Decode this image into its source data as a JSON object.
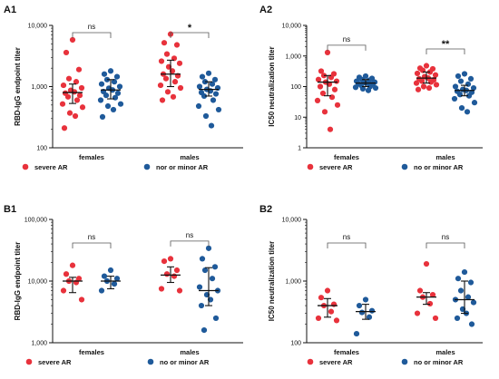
{
  "colors": {
    "severe": "#e8323c",
    "minor": "#1f5a9a",
    "axis": "#111111"
  },
  "chart_data": [
    {
      "panel": "A1",
      "type": "scatter",
      "ylabel": "RBD-IgG endpoint titer",
      "yscale": "log",
      "ylim": [
        100,
        10000
      ],
      "yticks": [
        100,
        1000,
        10000
      ],
      "ytick_labels": [
        "100",
        "1,000",
        "10,000"
      ],
      "categories": [
        "females",
        "males"
      ],
      "legend": [
        "severe AR",
        "nor or minor AR"
      ],
      "comparisons": [
        {
          "category": "females",
          "label": "ns"
        },
        {
          "category": "males",
          "label": "*"
        }
      ],
      "groups": [
        {
          "category": "females",
          "series": "severe AR",
          "median": 800,
          "q1": 530,
          "q3": 1100,
          "values": [
            5800,
            3600,
            1900,
            1350,
            1200,
            1050,
            950,
            870,
            820,
            780,
            720,
            680,
            600,
            520,
            460,
            370,
            330,
            210
          ]
        },
        {
          "category": "females",
          "series": "nor or minor AR",
          "median": 880,
          "q1": 630,
          "q3": 1300,
          "values": [
            1800,
            1600,
            1450,
            1300,
            1200,
            1100,
            1000,
            940,
            880,
            830,
            780,
            720,
            660,
            600,
            520,
            480,
            420,
            320
          ]
        },
        {
          "category": "males",
          "series": "severe AR",
          "median": 1600,
          "q1": 1000,
          "q3": 2700,
          "values": [
            7200,
            5200,
            4800,
            3400,
            2900,
            2600,
            2400,
            2100,
            1800,
            1600,
            1500,
            1350,
            1200,
            1050,
            950,
            820,
            680,
            600
          ]
        },
        {
          "category": "males",
          "series": "nor or minor AR",
          "median": 900,
          "q1": 700,
          "q3": 1200,
          "values": [
            1650,
            1450,
            1300,
            1200,
            1100,
            1000,
            950,
            900,
            850,
            800,
            760,
            700,
            600,
            480,
            420,
            330,
            230
          ]
        }
      ]
    },
    {
      "panel": "A2",
      "type": "scatter",
      "ylabel": "IC50 neutralization titer",
      "yscale": "log",
      "ylim": [
        1,
        10000
      ],
      "yticks": [
        1,
        10,
        100,
        1000,
        10000
      ],
      "ytick_labels": [
        "1",
        "10",
        "100",
        "1,000",
        "10,000"
      ],
      "categories": [
        "females",
        "males"
      ],
      "legend": [
        "severe AR",
        "no or minor AR"
      ],
      "comparisons": [
        {
          "category": "females",
          "label": "ns"
        },
        {
          "category": "males",
          "label": "**"
        }
      ],
      "groups": [
        {
          "category": "females",
          "series": "severe AR",
          "median": 140,
          "q1": 50,
          "q3": 230,
          "values": [
            1300,
            320,
            260,
            230,
            200,
            170,
            150,
            140,
            120,
            100,
            80,
            60,
            45,
            35,
            25,
            15,
            4
          ]
        },
        {
          "category": "females",
          "series": "no or minor AR",
          "median": 130,
          "q1": 100,
          "q3": 170,
          "values": [
            220,
            200,
            185,
            170,
            160,
            150,
            140,
            135,
            130,
            125,
            120,
            110,
            100,
            95,
            90,
            85,
            75
          ]
        },
        {
          "category": "males",
          "series": "severe AR",
          "median": 190,
          "q1": 130,
          "q3": 300,
          "values": [
            480,
            400,
            380,
            340,
            300,
            270,
            240,
            210,
            190,
            180,
            165,
            150,
            140,
            130,
            115,
            100,
            90,
            80
          ]
        },
        {
          "category": "males",
          "series": "no or minor AR",
          "median": 75,
          "q1": 50,
          "q3": 110,
          "values": [
            260,
            220,
            180,
            150,
            120,
            100,
            90,
            80,
            75,
            70,
            65,
            55,
            50,
            40,
            30,
            20,
            15
          ]
        }
      ]
    },
    {
      "panel": "B1",
      "type": "scatter",
      "ylabel": "RBD-IgG endpoint titer",
      "yscale": "log",
      "ylim": [
        1000,
        100000
      ],
      "yticks": [
        1000,
        10000,
        100000
      ],
      "ytick_labels": [
        "1,000",
        "10,000",
        "100,000"
      ],
      "categories": [
        "females",
        "males"
      ],
      "legend": [
        "severe AR",
        "no or minor AR"
      ],
      "comparisons": [
        {
          "category": "females",
          "label": "ns"
        },
        {
          "category": "males",
          "label": "ns"
        }
      ],
      "groups": [
        {
          "category": "females",
          "series": "severe AR",
          "median": 10000,
          "q1": 6500,
          "q3": 11500,
          "values": [
            18000,
            13000,
            11000,
            10000,
            9500,
            7000,
            5000
          ]
        },
        {
          "category": "females",
          "series": "no or minor AR",
          "median": 10000,
          "q1": 7500,
          "q3": 12000,
          "values": [
            15000,
            12000,
            11000,
            10000,
            9000,
            7000
          ]
        },
        {
          "category": "males",
          "series": "severe AR",
          "median": 12500,
          "q1": 9500,
          "q3": 17000,
          "values": [
            23000,
            21000,
            15000,
            13000,
            12000,
            7500,
            7000
          ]
        },
        {
          "category": "males",
          "series": "no or minor AR",
          "median": 7000,
          "q1": 4000,
          "q3": 16500,
          "values": [
            34000,
            23000,
            17000,
            15000,
            11000,
            8000,
            7000,
            6000,
            5000,
            4000,
            2500,
            1600
          ]
        }
      ]
    },
    {
      "panel": "B2",
      "type": "scatter",
      "ylabel": "IC50 neutralization titer",
      "yscale": "log",
      "ylim": [
        100,
        10000
      ],
      "yticks": [
        100,
        1000,
        10000
      ],
      "ytick_labels": [
        "100",
        "1,000",
        "10,000"
      ],
      "categories": [
        "females",
        "males"
      ],
      "legend": [
        "severe AR",
        "no or minor AR"
      ],
      "comparisons": [
        {
          "category": "females",
          "label": "ns"
        },
        {
          "category": "males",
          "label": "ns"
        }
      ],
      "groups": [
        {
          "category": "females",
          "series": "severe AR",
          "median": 400,
          "q1": 260,
          "q3": 520,
          "values": [
            700,
            540,
            420,
            400,
            320,
            250,
            230
          ]
        },
        {
          "category": "females",
          "series": "no or minor AR",
          "median": 320,
          "q1": 240,
          "q3": 420,
          "values": [
            500,
            400,
            330,
            310,
            260,
            140
          ]
        },
        {
          "category": "males",
          "series": "severe AR",
          "median": 550,
          "q1": 420,
          "q3": 650,
          "values": [
            1900,
            700,
            600,
            550,
            430,
            300,
            250
          ]
        },
        {
          "category": "males",
          "series": "no or minor AR",
          "median": 500,
          "q1": 300,
          "q3": 1000,
          "values": [
            1400,
            1100,
            950,
            700,
            550,
            500,
            450,
            350,
            300,
            250,
            200
          ]
        }
      ]
    }
  ]
}
